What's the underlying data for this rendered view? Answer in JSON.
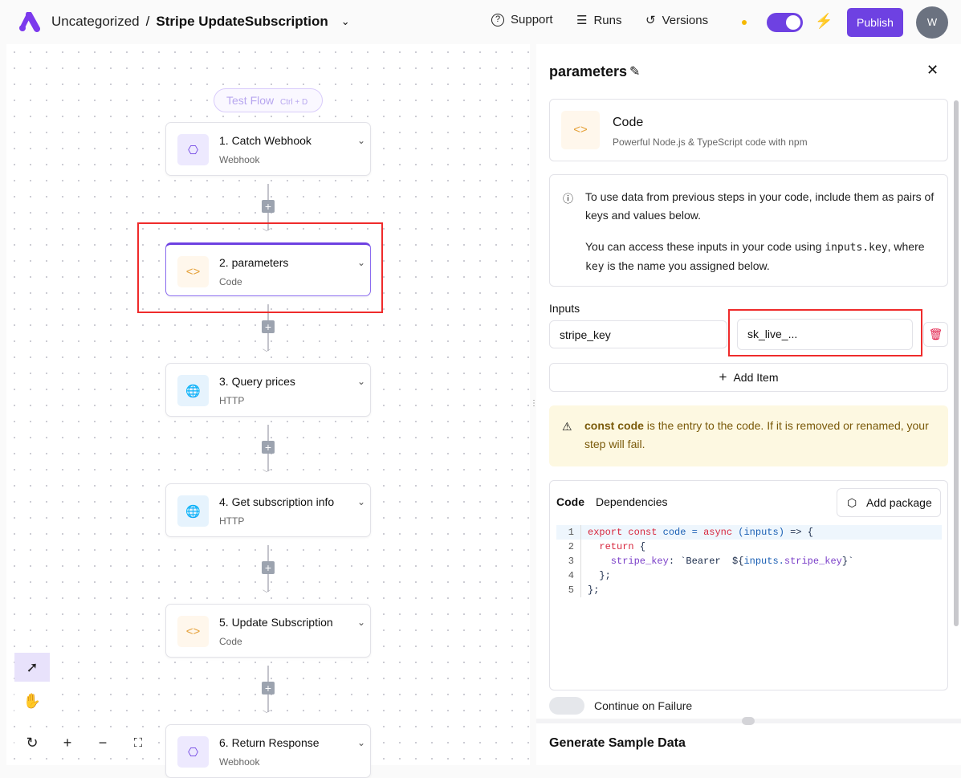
{
  "header": {
    "breadcrumb_folder": "Uncategorized",
    "separator": "/",
    "flow_name": "Stripe UpdateSubscription",
    "support": "Support",
    "runs": "Runs",
    "versions": "Versions",
    "publish": "Publish",
    "avatar_initial": "W",
    "toggle_on": true,
    "accent": "#6e41e2"
  },
  "canvas": {
    "test_flow": "Test Flow",
    "test_flow_shortcut": "Ctrl + D",
    "steps": [
      {
        "title": "1. Catch Webhook",
        "subtitle": "Webhook",
        "icon": "webhook-icon"
      },
      {
        "title": "2. parameters",
        "subtitle": "Code",
        "icon": "code-icon",
        "selected": true
      },
      {
        "title": "3. Query prices",
        "subtitle": "HTTP",
        "icon": "globe-icon"
      },
      {
        "title": "4. Get subscription info",
        "subtitle": "HTTP",
        "icon": "globe-icon"
      },
      {
        "title": "5. Update Subscription",
        "subtitle": "Code",
        "icon": "code-icon"
      },
      {
        "title": "6. Return Response",
        "subtitle": "Webhook",
        "icon": "webhook-icon"
      }
    ]
  },
  "panel": {
    "title": "parameters",
    "piece_name": "Code",
    "piece_desc": "Powerful Node.js & TypeScript code with npm",
    "info_1": "To use data from previous steps in your code, include them as pairs of keys and values below.",
    "info_2a": "You can access these inputs in your code using ",
    "info_2code": "inputs.key",
    "info_2b": ", where ",
    "info_2code2": "key",
    "info_2c": " is the name you assigned below.",
    "inputs_label": "Inputs",
    "input_key": "stripe_key",
    "input_value": "sk_live_...",
    "add_item": "Add Item",
    "warning_bold": "const code",
    "warning_rest": " is the entry to the code. If it is removed or renamed, your step will fail.",
    "tab_code": "Code",
    "tab_deps": "Dependencies",
    "add_package": "Add package",
    "code_lines": [
      {
        "n": "1",
        "parts": [
          [
            "kw",
            "export "
          ],
          [
            "kw",
            "const "
          ],
          [
            "bl",
            "code "
          ],
          [
            "bl",
            "= "
          ],
          [
            "kw",
            "async "
          ],
          [
            "bl",
            "(inputs) "
          ],
          [
            "dk",
            "=> {"
          ]
        ]
      },
      {
        "n": "2",
        "parts": [
          [
            "kw",
            "  return "
          ],
          [
            "dk",
            "{"
          ]
        ]
      },
      {
        "n": "3",
        "parts": [
          [
            "pu",
            "    stripe_key"
          ],
          [
            "dk",
            ": `Bearer  ${"
          ],
          [
            "bl",
            "inputs."
          ],
          [
            "pu",
            "stripe_key"
          ],
          [
            "dk",
            "}`"
          ]
        ]
      },
      {
        "n": "4",
        "parts": [
          [
            "dk",
            "  };"
          ]
        ]
      },
      {
        "n": "5",
        "parts": [
          [
            "dk",
            "};"
          ]
        ]
      }
    ],
    "continue_on_failure": "Continue on Failure",
    "generate_sample": "Generate Sample Data"
  }
}
